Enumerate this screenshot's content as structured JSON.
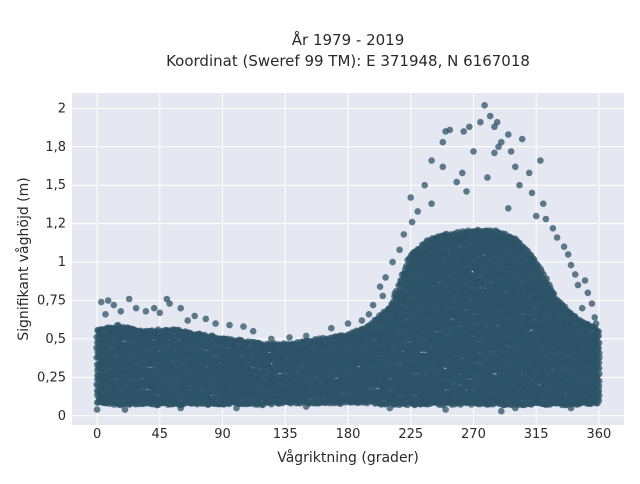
{
  "chart_data": {
    "type": "scatter",
    "title_line1": "År 1979 - 2019",
    "title_line2": "Koordinat (Sweref 99 TM): E 371948, N 6167018",
    "xlabel": "Vågriktning (grader)",
    "ylabel": "Signifikant våghöjd (m)",
    "xlim": [
      -18,
      378
    ],
    "ylim": [
      -0.06,
      2.1
    ],
    "x_ticks": [
      0,
      45,
      90,
      135,
      180,
      225,
      270,
      315,
      360
    ],
    "x_tick_labels": [
      "0",
      "45",
      "90",
      "135",
      "180",
      "225",
      "270",
      "315",
      "360"
    ],
    "y_ticks": [
      0,
      0.25,
      0.5,
      0.75,
      1,
      1.25,
      1.5,
      1.75,
      2
    ],
    "y_tick_labels": [
      "0",
      "0,25",
      "0,5",
      "0,75",
      "1",
      "1,2",
      "1,5",
      "1,8",
      "2"
    ],
    "grid": true,
    "background": "#e5e8f0",
    "marker_color": "#2e5368",
    "marker_opacity": 0.75,
    "envelope": {
      "x": [
        0,
        15,
        30,
        45,
        60,
        75,
        90,
        105,
        120,
        135,
        150,
        165,
        180,
        195,
        210,
        225,
        240,
        255,
        270,
        285,
        300,
        315,
        330,
        345,
        360
      ],
      "lower": [
        0.09,
        0.08,
        0.08,
        0.08,
        0.08,
        0.08,
        0.08,
        0.08,
        0.08,
        0.09,
        0.09,
        0.09,
        0.09,
        0.09,
        0.08,
        0.08,
        0.08,
        0.08,
        0.08,
        0.08,
        0.08,
        0.08,
        0.08,
        0.08,
        0.09
      ],
      "upper": [
        0.55,
        0.58,
        0.55,
        0.55,
        0.55,
        0.52,
        0.5,
        0.48,
        0.46,
        0.46,
        0.48,
        0.5,
        0.52,
        0.58,
        0.7,
        1.05,
        1.15,
        1.18,
        1.2,
        1.2,
        1.15,
        1.0,
        0.75,
        0.62,
        0.55
      ]
    },
    "points": [
      {
        "x": 278,
        "y": 2.02
      },
      {
        "x": 282,
        "y": 1.95
      },
      {
        "x": 275,
        "y": 1.91
      },
      {
        "x": 287,
        "y": 1.91
      },
      {
        "x": 267,
        "y": 1.88
      },
      {
        "x": 285,
        "y": 1.88
      },
      {
        "x": 253,
        "y": 1.86
      },
      {
        "x": 250,
        "y": 1.85
      },
      {
        "x": 263,
        "y": 1.85
      },
      {
        "x": 295,
        "y": 1.83
      },
      {
        "x": 305,
        "y": 1.8
      },
      {
        "x": 290,
        "y": 1.78
      },
      {
        "x": 288,
        "y": 1.75
      },
      {
        "x": 248,
        "y": 1.78
      },
      {
        "x": 270,
        "y": 1.72
      },
      {
        "x": 285,
        "y": 1.71
      },
      {
        "x": 297,
        "y": 1.72
      },
      {
        "x": 240,
        "y": 1.66
      },
      {
        "x": 318,
        "y": 1.66
      },
      {
        "x": 248,
        "y": 1.62
      },
      {
        "x": 262,
        "y": 1.58
      },
      {
        "x": 300,
        "y": 1.62
      },
      {
        "x": 310,
        "y": 1.58
      },
      {
        "x": 280,
        "y": 1.55
      },
      {
        "x": 258,
        "y": 1.52
      },
      {
        "x": 235,
        "y": 1.5
      },
      {
        "x": 303,
        "y": 1.5
      },
      {
        "x": 265,
        "y": 1.46
      },
      {
        "x": 312,
        "y": 1.45
      },
      {
        "x": 225,
        "y": 1.42
      },
      {
        "x": 240,
        "y": 1.38
      },
      {
        "x": 320,
        "y": 1.38
      },
      {
        "x": 230,
        "y": 1.33
      },
      {
        "x": 295,
        "y": 1.35
      },
      {
        "x": 315,
        "y": 1.3
      },
      {
        "x": 322,
        "y": 1.28
      },
      {
        "x": 226,
        "y": 1.26
      },
      {
        "x": 327,
        "y": 1.22
      },
      {
        "x": 220,
        "y": 1.18
      },
      {
        "x": 330,
        "y": 1.16
      },
      {
        "x": 335,
        "y": 1.1
      },
      {
        "x": 217,
        "y": 1.08
      },
      {
        "x": 338,
        "y": 1.05
      },
      {
        "x": 212,
        "y": 1.0
      },
      {
        "x": 340,
        "y": 0.98
      },
      {
        "x": 343,
        "y": 0.92
      },
      {
        "x": 345,
        "y": 0.85
      },
      {
        "x": 350,
        "y": 0.88
      },
      {
        "x": 207,
        "y": 0.9
      },
      {
        "x": 203,
        "y": 0.84
      },
      {
        "x": 352,
        "y": 0.8
      },
      {
        "x": 205,
        "y": 0.78
      },
      {
        "x": 355,
        "y": 0.73
      },
      {
        "x": 198,
        "y": 0.72
      },
      {
        "x": 348,
        "y": 0.7
      },
      {
        "x": 357,
        "y": 0.64
      },
      {
        "x": 358,
        "y": 0.6
      },
      {
        "x": 195,
        "y": 0.66
      },
      {
        "x": 190,
        "y": 0.62
      },
      {
        "x": 180,
        "y": 0.6
      },
      {
        "x": 168,
        "y": 0.57
      },
      {
        "x": 3,
        "y": 0.74
      },
      {
        "x": 8,
        "y": 0.75
      },
      {
        "x": 12,
        "y": 0.72
      },
      {
        "x": 23,
        "y": 0.76
      },
      {
        "x": 28,
        "y": 0.7
      },
      {
        "x": 35,
        "y": 0.68
      },
      {
        "x": 41,
        "y": 0.7
      },
      {
        "x": 50,
        "y": 0.76
      },
      {
        "x": 52,
        "y": 0.73
      },
      {
        "x": 60,
        "y": 0.7
      },
      {
        "x": 70,
        "y": 0.65
      },
      {
        "x": 78,
        "y": 0.63
      },
      {
        "x": 85,
        "y": 0.6
      },
      {
        "x": 95,
        "y": 0.59
      },
      {
        "x": 105,
        "y": 0.58
      },
      {
        "x": 112,
        "y": 0.55
      },
      {
        "x": 125,
        "y": 0.5
      },
      {
        "x": 138,
        "y": 0.51
      },
      {
        "x": 150,
        "y": 0.52
      },
      {
        "x": 6,
        "y": 0.66
      },
      {
        "x": 17,
        "y": 0.68
      },
      {
        "x": 45,
        "y": 0.67
      },
      {
        "x": 65,
        "y": 0.62
      },
      {
        "x": 0,
        "y": 0.04
      },
      {
        "x": 20,
        "y": 0.04
      },
      {
        "x": 60,
        "y": 0.05
      },
      {
        "x": 100,
        "y": 0.05
      },
      {
        "x": 150,
        "y": 0.06
      },
      {
        "x": 210,
        "y": 0.05
      },
      {
        "x": 250,
        "y": 0.04
      },
      {
        "x": 300,
        "y": 0.05
      },
      {
        "x": 340,
        "y": 0.05
      },
      {
        "x": 290,
        "y": 0.03
      }
    ]
  }
}
